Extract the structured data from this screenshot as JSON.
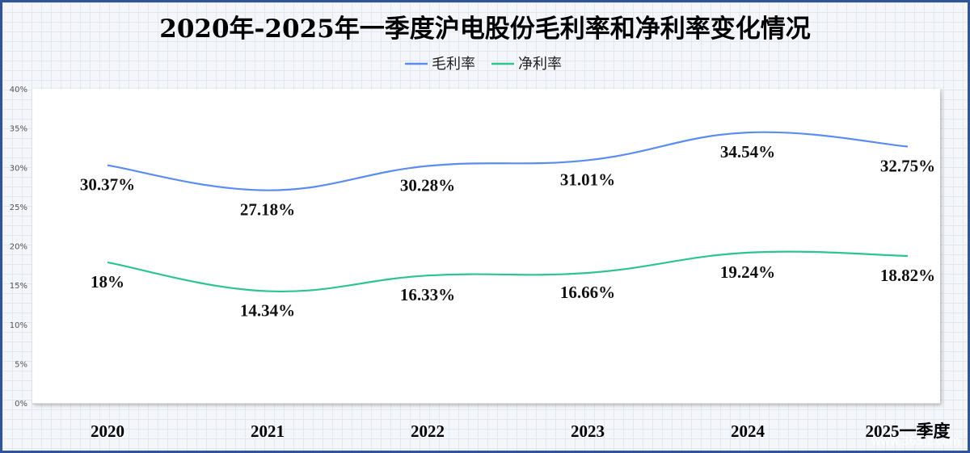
{
  "chart_data": {
    "type": "line",
    "title": "2020年-2025年一季度沪电股份毛利率和净利率变化情况",
    "categories": [
      "2020",
      "2021",
      "2022",
      "2023",
      "2024",
      "2025一季度"
    ],
    "series": [
      {
        "name": "毛利率",
        "color": "#5b8def",
        "values": [
          30.37,
          27.18,
          30.28,
          31.01,
          34.54,
          32.75
        ],
        "labels": [
          "30.37%",
          "27.18%",
          "30.28%",
          "31.01%",
          "34.54%",
          "32.75%"
        ]
      },
      {
        "name": "净利率",
        "color": "#2ec48e",
        "values": [
          18,
          14.34,
          16.33,
          16.66,
          19.24,
          18.82
        ],
        "labels": [
          "18%",
          "14.34%",
          "16.33%",
          "16.66%",
          "19.24%",
          "18.82%"
        ]
      }
    ],
    "yticks": [
      "0%",
      "5%",
      "10%",
      "15%",
      "20%",
      "25%",
      "30%",
      "35%",
      "40%"
    ],
    "ylim": [
      0,
      40
    ],
    "legend_position": "top-center",
    "grid": false
  },
  "watermark": "www.365jz.com"
}
